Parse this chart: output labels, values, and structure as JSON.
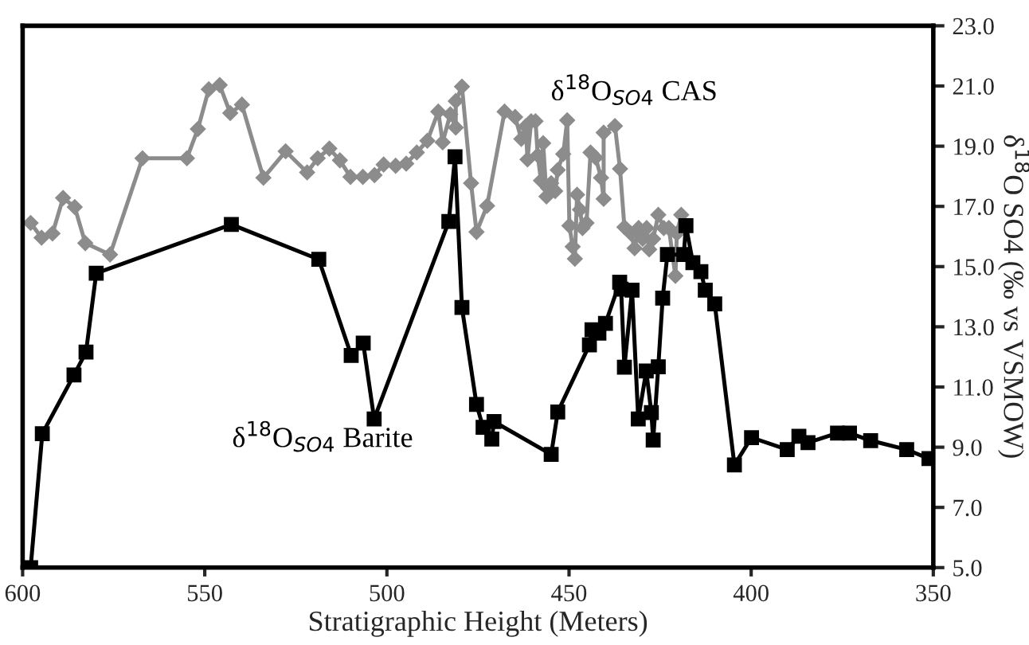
{
  "chart_data": {
    "type": "line",
    "xlabel": "Stratigraphic Height (Meters)",
    "ylabel": "δ$^{18}$O SO4 (‰ vs VSMOW)",
    "xlim": [
      600,
      350
    ],
    "xticks": [
      600,
      550,
      500,
      450,
      400,
      350
    ],
    "ylim": [
      5,
      23
    ],
    "yticks": [
      {
        "value": 5,
        "label": "5.0"
      },
      {
        "value": 7,
        "label": "7.0"
      },
      {
        "value": 9,
        "label": "9.0"
      },
      {
        "value": 11,
        "label": "11.0"
      },
      {
        "value": 13,
        "label": "13.0"
      },
      {
        "value": 15,
        "label": "15.0"
      },
      {
        "value": 17,
        "label": "17.0"
      },
      {
        "value": 19,
        "label": "19.0"
      },
      {
        "value": 21,
        "label": "21.0"
      },
      {
        "value": 23,
        "label": "23.0"
      }
    ],
    "grid": false,
    "legend": false,
    "series": [
      {
        "name": "δ$^{18}$O$_{SO4}$ CAS",
        "color": "#8c8c8c",
        "marker": "diamond",
        "x": [
          597.8,
          594.8,
          591.8,
          588.9,
          585.7,
          582.8,
          576.0,
          567.1,
          554.9,
          551.9,
          548.9,
          545.9,
          543.0,
          539.8,
          533.9,
          527.8,
          521.9,
          519.0,
          515.8,
          512.9,
          510.0,
          506.6,
          503.4,
          500.9,
          497.6,
          494.7,
          491.8,
          488.9,
          485.9,
          484.7,
          482.6,
          481.1,
          481.1,
          479.4,
          476.9,
          475.4,
          472.5,
          467.7,
          464.8,
          463.1,
          461.9,
          461.4,
          460.4,
          459.2,
          458.6,
          457.7,
          457.1,
          456.2,
          455.7,
          454.9,
          453.8,
          453.1,
          451.6,
          450.5,
          449.9,
          449.0,
          448.4,
          447.8,
          447.0,
          446.3,
          445.2,
          444.1,
          442.7,
          441.2,
          440.5,
          440.5,
          437.4,
          436.0,
          434.8,
          433.0,
          432.0,
          430.9,
          429.8,
          428.7,
          428.0,
          426.9,
          425.5,
          424.0,
          422.6,
          420.8,
          420.4,
          419.2
        ],
        "values": [
          16.45,
          15.96,
          16.1,
          17.28,
          16.98,
          15.78,
          15.4,
          18.6,
          18.6,
          19.57,
          20.89,
          21.03,
          20.1,
          20.38,
          17.95,
          18.83,
          18.13,
          18.6,
          18.92,
          18.53,
          17.98,
          17.98,
          18.04,
          18.39,
          18.35,
          18.42,
          18.79,
          19.18,
          20.15,
          19.13,
          20.06,
          19.62,
          20.5,
          20.98,
          17.77,
          16.15,
          17.02,
          20.15,
          19.97,
          19.24,
          19.66,
          18.56,
          19.83,
          19.83,
          18.7,
          17.86,
          19.1,
          17.33,
          17.6,
          17.77,
          17.51,
          18.21,
          18.74,
          19.86,
          16.36,
          15.66,
          15.26,
          17.39,
          16.89,
          16.28,
          16.45,
          18.79,
          18.62,
          17.95,
          17.25,
          19.45,
          19.67,
          18.25,
          16.31,
          16.1,
          15.61,
          16.28,
          15.92,
          16.28,
          15.57,
          15.92,
          16.72,
          16.28,
          16.28,
          14.69,
          16.1,
          16.72
        ]
      },
      {
        "name": "δ$^{18}$O$_{SO4}$ Barite",
        "color": "#000000",
        "marker": "square",
        "x": [
          597.8,
          594.6,
          585.9,
          582.6,
          579.8,
          542.7,
          518.7,
          509.8,
          506.5,
          503.5,
          483.0,
          481.3,
          479.4,
          475.4,
          473.6,
          471.2,
          470.6,
          454.9,
          453.1,
          444.4,
          443.7,
          441.8,
          440.0,
          436.1,
          435.7,
          434.8,
          432.7,
          431.0,
          428.8,
          427.4,
          426.9,
          425.5,
          424.3,
          423.0,
          418.5,
          417.9,
          416.0,
          413.8,
          412.6,
          410.0,
          404.6,
          399.9,
          390.1,
          386.9,
          384.4,
          376.3,
          373.0,
          367.2,
          357.3,
          351.2
        ],
        "values": [
          5.0,
          9.45,
          11.4,
          12.16,
          14.78,
          16.4,
          15.24,
          12.05,
          12.46,
          9.94,
          16.5,
          18.65,
          13.64,
          10.42,
          9.66,
          9.27,
          9.85,
          8.76,
          10.17,
          12.4,
          12.9,
          12.79,
          13.11,
          14.48,
          14.25,
          11.66,
          14.22,
          9.94,
          11.53,
          10.15,
          9.24,
          11.67,
          13.95,
          15.4,
          15.4,
          16.36,
          15.13,
          14.83,
          14.22,
          13.76,
          8.41,
          9.32,
          8.92,
          9.36,
          9.15,
          9.47,
          9.47,
          9.22,
          8.92,
          8.62
        ]
      }
    ]
  }
}
